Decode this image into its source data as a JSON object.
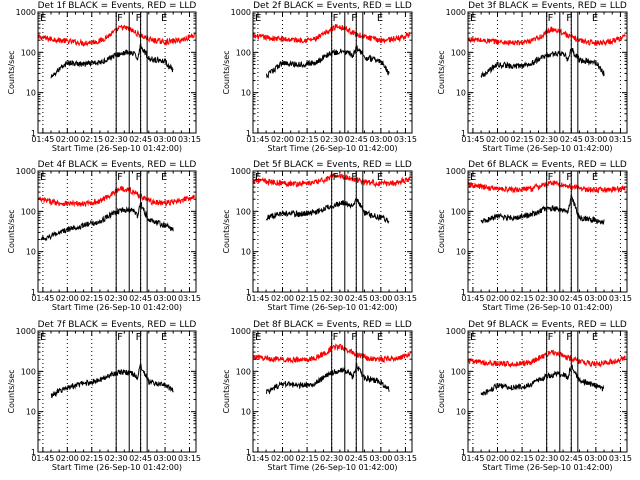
{
  "chart_data": [
    {
      "type": "line",
      "title": "Det 1f BLACK = Events, RED = LLD",
      "xlabel": "Start Time (26-Sep-10 01:42:00)",
      "ylabel": "Counts/sec",
      "y_scale": "log",
      "ylim": [
        1,
        1000
      ],
      "yticks": [
        "1",
        "10",
        "100",
        "1000"
      ],
      "xticks": [
        "01:45",
        "02:00",
        "02:15",
        "02:30",
        "02:45",
        "03:00",
        "03:15"
      ],
      "x_range": [
        "01:42",
        "03:19"
      ],
      "grid": "dotted vertical lines at each x tick",
      "markers": {
        "E_left": "01:42",
        "F1": "02:30",
        "F2": "02:38",
        "F3": "02:45",
        "F4": "02:49",
        "E_right": "03:00"
      },
      "series": [
        {
          "name": "RED = LLD",
          "color": "#ff0000",
          "x": [
            "01:42",
            "01:55",
            "02:10",
            "02:20",
            "02:28",
            "02:33",
            "02:38",
            "02:45",
            "02:52",
            "03:00",
            "03:10",
            "03:18"
          ],
          "values": [
            240,
            200,
            170,
            190,
            300,
            420,
            380,
            260,
            200,
            180,
            200,
            270
          ]
        },
        {
          "name": "BLACK = Events",
          "color": "#000000",
          "x": [
            "01:50",
            "02:00",
            "02:10",
            "02:20",
            "02:28",
            "02:36",
            "02:41",
            "02:43",
            "02:45",
            "02:50",
            "03:00",
            "03:05"
          ],
          "values": [
            25,
            55,
            50,
            55,
            80,
            100,
            90,
            70,
            150,
            70,
            60,
            35
          ]
        }
      ]
    },
    {
      "type": "line",
      "title": "Det 2f BLACK = Events, RED = LLD",
      "xlabel": "Start Time (26-Sep-10 01:42:00)",
      "ylabel": "Counts/sec",
      "y_scale": "log",
      "ylim": [
        1,
        1000
      ],
      "yticks": [
        "1",
        "10",
        "100",
        "1000"
      ],
      "xticks": [
        "01:45",
        "02:00",
        "02:15",
        "02:30",
        "02:45",
        "03:00",
        "03:15"
      ],
      "x_range": [
        "01:42",
        "03:19"
      ],
      "grid": "dotted vertical lines at each x tick",
      "markers": {
        "E_left": "01:42",
        "F1": "02:30",
        "F2": "02:38",
        "F3": "02:45",
        "F4": "02:49",
        "E_right": "03:00"
      },
      "series": [
        {
          "name": "RED = LLD",
          "color": "#ff0000",
          "x": [
            "01:42",
            "01:55",
            "02:10",
            "02:20",
            "02:28",
            "02:33",
            "02:38",
            "02:45",
            "02:52",
            "03:00",
            "03:10",
            "03:18"
          ],
          "values": [
            250,
            220,
            200,
            210,
            330,
            450,
            400,
            280,
            230,
            200,
            220,
            280
          ]
        },
        {
          "name": "BLACK = Events",
          "color": "#000000",
          "x": [
            "01:50",
            "02:00",
            "02:10",
            "02:20",
            "02:28",
            "02:36",
            "02:41",
            "02:43",
            "02:45",
            "02:50",
            "03:00",
            "03:05"
          ],
          "values": [
            25,
            55,
            50,
            55,
            90,
            105,
            95,
            75,
            140,
            75,
            60,
            30
          ]
        }
      ]
    },
    {
      "type": "line",
      "title": "Det 3f BLACK = Events, RED = LLD",
      "xlabel": "Start Time (26-Sep-10 01:42:00)",
      "ylabel": "Counts/sec",
      "y_scale": "log",
      "ylim": [
        1,
        1000
      ],
      "yticks": [
        "1",
        "10",
        "100",
        "1000"
      ],
      "xticks": [
        "01:45",
        "02:00",
        "02:15",
        "02:30",
        "02:45",
        "03:00",
        "03:15"
      ],
      "x_range": [
        "01:42",
        "03:19"
      ],
      "grid": "dotted vertical lines at each x tick",
      "markers": {
        "E_left": "01:42",
        "F1": "02:30",
        "F2": "02:38",
        "F3": "02:45",
        "F4": "02:49",
        "E_right": "03:00"
      },
      "series": [
        {
          "name": "RED = LLD",
          "color": "#ff0000",
          "x": [
            "01:42",
            "01:55",
            "02:10",
            "02:20",
            "02:28",
            "02:33",
            "02:38",
            "02:45",
            "02:52",
            "03:00",
            "03:10",
            "03:18"
          ],
          "values": [
            210,
            190,
            170,
            180,
            270,
            380,
            340,
            240,
            190,
            170,
            190,
            250
          ]
        },
        {
          "name": "BLACK = Events",
          "color": "#000000",
          "x": [
            "01:50",
            "02:00",
            "02:10",
            "02:20",
            "02:28",
            "02:36",
            "02:41",
            "02:43",
            "02:45",
            "02:50",
            "03:00",
            "03:05"
          ],
          "values": [
            25,
            50,
            45,
            50,
            80,
            95,
            85,
            65,
            120,
            65,
            55,
            30
          ]
        }
      ]
    },
    {
      "type": "line",
      "title": "Det 4f BLACK = Events, RED = LLD",
      "xlabel": "Start Time (26-Sep-10 01:42:00)",
      "ylabel": "Counts/sec",
      "y_scale": "log",
      "ylim": [
        1,
        1000
      ],
      "yticks": [
        "1",
        "10",
        "100",
        "1000"
      ],
      "xticks": [
        "01:45",
        "02:00",
        "02:15",
        "02:30",
        "02:45",
        "03:00",
        "03:15"
      ],
      "x_range": [
        "01:42",
        "03:19"
      ],
      "grid": "dotted vertical lines at each x tick",
      "markers": {
        "E_left": "01:42",
        "F1": "02:30",
        "F2": "02:38",
        "F3": "02:45",
        "F4": "02:49",
        "E_right": "03:00"
      },
      "series": [
        {
          "name": "RED = LLD",
          "color": "#ff0000",
          "x": [
            "01:42",
            "01:55",
            "02:10",
            "02:20",
            "02:28",
            "02:33",
            "02:38",
            "02:45",
            "02:52",
            "03:00",
            "03:10",
            "03:18"
          ],
          "values": [
            200,
            160,
            150,
            180,
            280,
            380,
            340,
            240,
            170,
            160,
            180,
            240
          ]
        },
        {
          "name": "BLACK = Events",
          "color": "#000000",
          "x": [
            "01:44",
            "02:00",
            "02:10",
            "02:20",
            "02:28",
            "02:36",
            "02:41",
            "02:43",
            "02:45",
            "02:50",
            "03:00",
            "03:05"
          ],
          "values": [
            20,
            35,
            45,
            55,
            90,
            110,
            100,
            75,
            160,
            60,
            45,
            35
          ]
        }
      ]
    },
    {
      "type": "line",
      "title": "Det 5f BLACK = Events, RED = LLD",
      "xlabel": "Start Time (26-Sep-10 01:42:00)",
      "ylabel": "Counts/sec",
      "y_scale": "log",
      "ylim": [
        1,
        1000
      ],
      "yticks": [
        "1",
        "10",
        "100",
        "1000"
      ],
      "xticks": [
        "01:45",
        "02:00",
        "02:15",
        "02:30",
        "02:45",
        "03:00",
        "03:15"
      ],
      "x_range": [
        "01:42",
        "03:19"
      ],
      "grid": "dotted vertical lines at each x tick",
      "markers": {
        "E_left": "01:42",
        "F1": "02:30",
        "F2": "02:38",
        "F3": "02:45",
        "F4": "02:49",
        "E_right": "03:00"
      },
      "series": [
        {
          "name": "RED = LLD",
          "color": "#ff0000",
          "x": [
            "01:42",
            "01:55",
            "02:10",
            "02:20",
            "02:28",
            "02:33",
            "02:38",
            "02:45",
            "02:52",
            "03:00",
            "03:10",
            "03:18"
          ],
          "values": [
            600,
            520,
            480,
            520,
            650,
            780,
            720,
            600,
            520,
            480,
            520,
            650
          ]
        },
        {
          "name": "BLACK = Events",
          "color": "#000000",
          "x": [
            "01:50",
            "02:00",
            "02:10",
            "02:20",
            "02:28",
            "02:36",
            "02:41",
            "02:43",
            "02:45",
            "02:50",
            "03:00",
            "03:05"
          ],
          "values": [
            70,
            90,
            85,
            95,
            130,
            160,
            150,
            120,
            220,
            90,
            70,
            60
          ]
        }
      ]
    },
    {
      "type": "line",
      "title": "Det 6f BLACK = Events, RED = LLD",
      "xlabel": "Start Time (26-Sep-10 01:42:00)",
      "ylabel": "Counts/sec",
      "y_scale": "log",
      "ylim": [
        1,
        1000
      ],
      "yticks": [
        "1",
        "10",
        "100",
        "1000"
      ],
      "xticks": [
        "01:45",
        "02:00",
        "02:15",
        "02:30",
        "02:45",
        "03:00",
        "03:15"
      ],
      "x_range": [
        "01:42",
        "03:19"
      ],
      "grid": "dotted vertical lines at each x tick",
      "markers": {
        "E_left": "01:42",
        "F1": "02:30",
        "F2": "02:38",
        "F3": "02:45",
        "F4": "02:49",
        "E_right": "03:00"
      },
      "series": [
        {
          "name": "RED = LLD",
          "color": "#ff0000",
          "x": [
            "01:42",
            "01:55",
            "02:10",
            "02:20",
            "02:28",
            "02:33",
            "02:38",
            "02:45",
            "02:52",
            "03:00",
            "03:10",
            "03:18"
          ],
          "values": [
            450,
            380,
            340,
            360,
            440,
            520,
            470,
            400,
            360,
            330,
            350,
            380
          ]
        },
        {
          "name": "BLACK = Events",
          "color": "#000000",
          "x": [
            "01:50",
            "02:00",
            "02:10",
            "02:20",
            "02:28",
            "02:36",
            "02:41",
            "02:43",
            "02:45",
            "02:50",
            "03:00",
            "03:05"
          ],
          "values": [
            55,
            75,
            70,
            80,
            110,
            120,
            100,
            90,
            250,
            70,
            60,
            55
          ]
        }
      ]
    },
    {
      "type": "line",
      "title": "Det 7f BLACK = Events, RED = LLD",
      "xlabel": "Start Time (26-Sep-10 01:42:00)",
      "ylabel": "Counts/sec",
      "y_scale": "log",
      "ylim": [
        1,
        1000
      ],
      "yticks": [
        "1",
        "10",
        "100",
        "1000"
      ],
      "xticks": [
        "01:45",
        "02:00",
        "02:15",
        "02:30",
        "02:45",
        "03:00",
        "03:15"
      ],
      "x_range": [
        "01:42",
        "03:19"
      ],
      "grid": "dotted vertical lines at each x tick",
      "markers": {
        "E_left": "01:42",
        "F1": "02:30",
        "F2": "02:38",
        "F3": "02:45",
        "F4": "02:49",
        "E_right": "03:00"
      },
      "series": [
        {
          "name": "BLACK = Events",
          "color": "#000000",
          "x": [
            "01:50",
            "02:00",
            "02:10",
            "02:20",
            "02:28",
            "02:36",
            "02:41",
            "02:43",
            "02:45",
            "02:50",
            "03:00",
            "03:05"
          ],
          "values": [
            25,
            40,
            50,
            60,
            90,
            95,
            85,
            70,
            140,
            55,
            45,
            35
          ]
        }
      ]
    },
    {
      "type": "line",
      "title": "Det 8f BLACK = Events, RED = LLD",
      "xlabel": "Start Time (26-Sep-10 01:42:00)",
      "ylabel": "Counts/sec",
      "y_scale": "log",
      "ylim": [
        1,
        1000
      ],
      "yticks": [
        "1",
        "10",
        "100",
        "1000"
      ],
      "xticks": [
        "01:45",
        "02:00",
        "02:15",
        "02:30",
        "02:45",
        "03:00",
        "03:15"
      ],
      "x_range": [
        "01:42",
        "03:19"
      ],
      "grid": "dotted vertical lines at each x tick",
      "markers": {
        "E_left": "01:42",
        "F1": "02:30",
        "F2": "02:38",
        "F3": "02:45",
        "F4": "02:49",
        "E_right": "03:00"
      },
      "series": [
        {
          "name": "RED = LLD",
          "color": "#ff0000",
          "x": [
            "01:42",
            "01:55",
            "02:10",
            "02:20",
            "02:28",
            "02:33",
            "02:38",
            "02:45",
            "02:52",
            "03:00",
            "03:10",
            "03:18"
          ],
          "values": [
            230,
            200,
            190,
            210,
            320,
            420,
            370,
            260,
            210,
            200,
            210,
            270
          ]
        },
        {
          "name": "BLACK = Events",
          "color": "#000000",
          "x": [
            "01:50",
            "02:00",
            "02:10",
            "02:20",
            "02:28",
            "02:36",
            "02:41",
            "02:43",
            "02:45",
            "02:50",
            "03:00",
            "03:05"
          ],
          "values": [
            30,
            50,
            45,
            50,
            85,
            110,
            95,
            70,
            140,
            70,
            55,
            35
          ]
        }
      ]
    },
    {
      "type": "line",
      "title": "Det 9f BLACK = Events, RED = LLD",
      "xlabel": "Start Time (26-Sep-10 01:42:00)",
      "ylabel": "Counts/sec",
      "y_scale": "log",
      "ylim": [
        1,
        1000
      ],
      "yticks": [
        "1",
        "10",
        "100",
        "1000"
      ],
      "xticks": [
        "01:45",
        "02:00",
        "02:15",
        "02:30",
        "02:45",
        "03:00",
        "03:15"
      ],
      "x_range": [
        "01:42",
        "03:19"
      ],
      "grid": "dotted vertical lines at each x tick",
      "markers": {
        "E_left": "01:42",
        "F1": "02:30",
        "F2": "02:38",
        "F3": "02:45",
        "F4": "02:49",
        "E_right": "03:00"
      },
      "series": [
        {
          "name": "RED = LLD",
          "color": "#ff0000",
          "x": [
            "01:42",
            "01:55",
            "02:10",
            "02:20",
            "02:28",
            "02:33",
            "02:38",
            "02:45",
            "02:52",
            "03:00",
            "03:10",
            "03:18"
          ],
          "values": [
            180,
            160,
            150,
            170,
            240,
            300,
            270,
            200,
            170,
            150,
            170,
            220
          ]
        },
        {
          "name": "BLACK = Events",
          "color": "#000000",
          "x": [
            "01:50",
            "02:00",
            "02:10",
            "02:20",
            "02:28",
            "02:36",
            "02:41",
            "02:43",
            "02:45",
            "02:50",
            "03:00",
            "03:05"
          ],
          "values": [
            25,
            45,
            40,
            45,
            70,
            85,
            80,
            65,
            150,
            60,
            45,
            35
          ]
        }
      ]
    }
  ]
}
